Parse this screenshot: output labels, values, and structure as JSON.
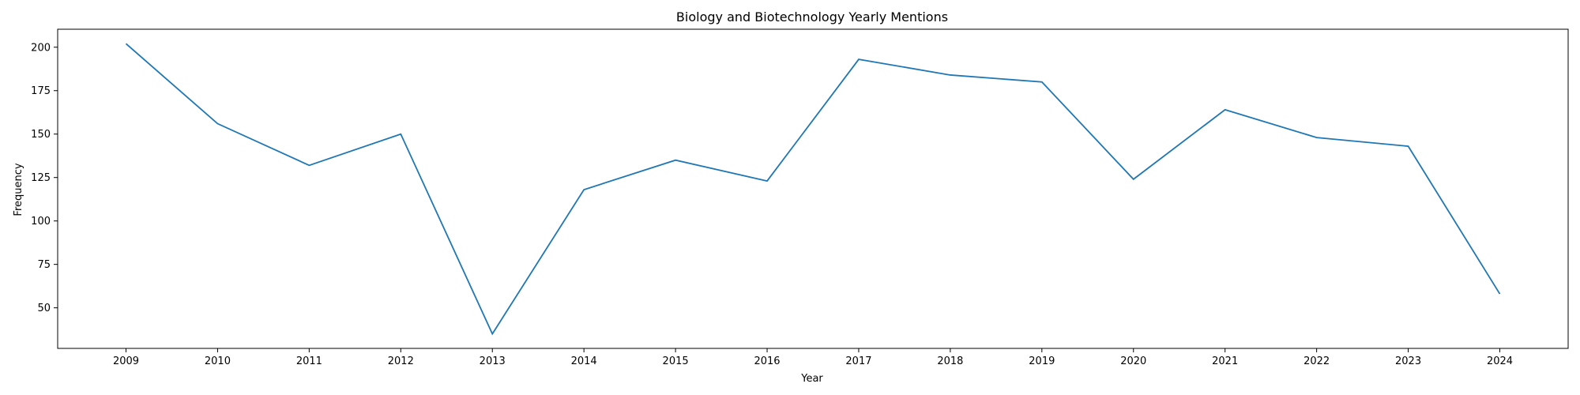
{
  "chart_data": {
    "type": "line",
    "title": "Biology and Biotechnology Yearly Mentions",
    "xlabel": "Year",
    "ylabel": "Frequency",
    "x": [
      "2009",
      "2010",
      "2011",
      "2012",
      "2013",
      "2014",
      "2015",
      "2016",
      "2017",
      "2018",
      "2019",
      "2020",
      "2021",
      "2022",
      "2023",
      "2024"
    ],
    "series": [
      {
        "values": [
          202,
          156,
          132,
          150,
          35,
          118,
          135,
          123,
          193,
          184,
          180,
          124,
          164,
          148,
          143,
          58
        ],
        "color": "#1f77b4"
      }
    ],
    "yticks": [
      50,
      75,
      100,
      125,
      150,
      175,
      200
    ],
    "ylim": [
      26.65,
      210.35
    ],
    "grid": false,
    "legend": "none"
  }
}
